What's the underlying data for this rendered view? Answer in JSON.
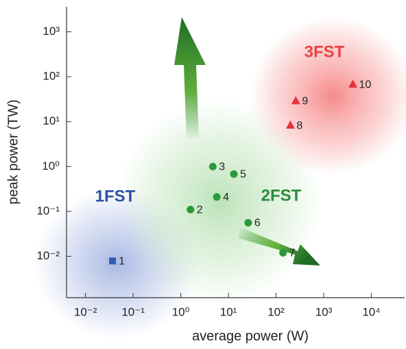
{
  "chart_data": {
    "type": "scatter",
    "x_label": "average power (W)",
    "y_label": "peak power (TW)",
    "log_x": true,
    "log_y": true,
    "xlim": [
      0.004,
      50000
    ],
    "ylim": [
      0.0012,
      3600
    ],
    "xticks": [
      {
        "value": 0.01,
        "label": "10⁻²"
      },
      {
        "value": 0.1,
        "label": "10⁻¹"
      },
      {
        "value": 1,
        "label": "10⁰"
      },
      {
        "value": 10,
        "label": "10¹"
      },
      {
        "value": 100,
        "label": "10²"
      },
      {
        "value": 1000,
        "label": "10³"
      },
      {
        "value": 10000,
        "label": "10⁴"
      }
    ],
    "yticks": [
      {
        "value": 0.01,
        "label": "10⁻²"
      },
      {
        "value": 0.1,
        "label": "10⁻¹"
      },
      {
        "value": 1,
        "label": "10⁰"
      },
      {
        "value": 10,
        "label": "10¹"
      },
      {
        "value": 100,
        "label": "10²"
      },
      {
        "value": 1000,
        "label": "10³"
      }
    ],
    "series": [
      {
        "name": "1FST",
        "color": "#2d5fb4",
        "marker": "square",
        "x": [
          0.037
        ],
        "values": [
          0.0079
        ],
        "labels": [
          "1"
        ]
      },
      {
        "name": "2FST",
        "color": "#2a9a3a",
        "marker": "circle",
        "x": [
          1.6,
          4.7,
          5.7,
          13,
          26,
          140
        ],
        "values": [
          0.11,
          1.0,
          0.21,
          0.68,
          0.056,
          0.012
        ],
        "labels": [
          "2",
          "3",
          "4",
          "5",
          "6",
          "7"
        ]
      },
      {
        "name": "3FST",
        "color": "#e8323c",
        "marker": "triangle",
        "x": [
          200,
          260,
          4100
        ],
        "values": [
          8.3,
          29,
          68
        ],
        "labels": [
          "8",
          "9",
          "10"
        ]
      }
    ]
  }
}
